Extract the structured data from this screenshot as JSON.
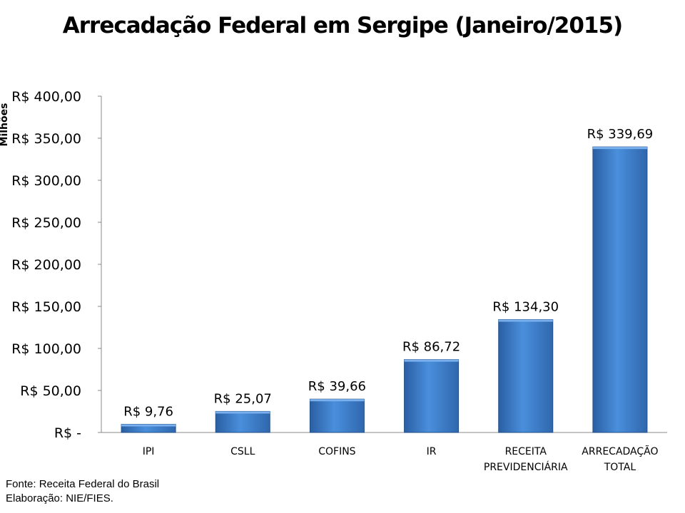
{
  "chart_data": {
    "type": "bar",
    "title": "Arrecadação Federal em Sergipe (Janeiro/2015)",
    "ylabel": "Milhões",
    "xlabel": "",
    "categories": [
      [
        "IPI"
      ],
      [
        "CSLL"
      ],
      [
        "COFINS"
      ],
      [
        "IR"
      ],
      [
        "RECEITA",
        "PREVIDENCIÁRIA"
      ],
      [
        "ARRECADAÇÃO",
        "TOTAL"
      ]
    ],
    "values": [
      9.76,
      25.07,
      39.66,
      86.72,
      134.3,
      339.69
    ],
    "data_labels": [
      "R$ 9,76",
      "R$ 25,07",
      "R$ 39,66",
      "R$ 86,72",
      "R$ 134,30",
      "R$ 339,69"
    ],
    "ylim": [
      0,
      400
    ],
    "yticks": [
      0,
      50,
      100,
      150,
      200,
      250,
      300,
      350,
      400
    ],
    "ytick_labels": [
      "R$ -",
      "R$ 50,00",
      "R$ 100,00",
      "R$ 150,00",
      "R$ 200,00",
      "R$ 250,00",
      "R$ 300,00",
      "R$ 350,00",
      "R$ 400,00"
    ],
    "grid": false,
    "bar_color": "#3a7cc9"
  },
  "source": "Fonte: Receita Federal do Brasil",
  "credit": "Elaboração: NIE/FIES."
}
